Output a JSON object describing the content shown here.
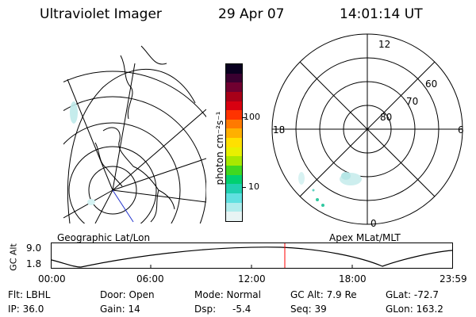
{
  "header": {
    "title": "Ultraviolet Imager",
    "date": "29 Apr 07",
    "time": "14:01:14 UT"
  },
  "left_map": {
    "caption": "Geographic Lat/Lon"
  },
  "right_map": {
    "caption": "Apex MLat/MLT",
    "mlt_labels": {
      "top": "12",
      "bottom": "0",
      "left": "18",
      "right": "6"
    },
    "lat_labels": [
      "60",
      "70",
      "80"
    ]
  },
  "colorbar": {
    "unit_label": "photon cm⁻²s⁻¹",
    "ticks": [
      "100",
      "10"
    ],
    "colors": [
      "#0a0020",
      "#3a0030",
      "#700030",
      "#a80018",
      "#d80010",
      "#ff3300",
      "#ff7a00",
      "#ffb000",
      "#ffe000",
      "#e8f000",
      "#a8e800",
      "#40d820",
      "#00d070",
      "#20d0b0",
      "#60e0e0",
      "#b0ecec",
      "#e8f4f4"
    ]
  },
  "altitude_plot": {
    "ylabel": "GC Alt",
    "yticks": [
      "9.0",
      "1.8"
    ],
    "xticks": [
      "00:00",
      "06:00",
      "12:00",
      "18:00",
      "23:59"
    ],
    "current_time_marker": "14:01",
    "marker_color": "#ff0000"
  },
  "info": {
    "flt": "Flt: LBHL",
    "ip": "IP: 36.0",
    "door": "Door: Open",
    "gain": "Gain: 14",
    "mode": "Mode: Normal",
    "dsp_label": "Dsp:",
    "dsp_value": "-5.4",
    "gc_alt": "GC Alt: 7.9 Re",
    "seq": "Seq: 39",
    "glat": "GLat: -72.7",
    "glon": "GLon: 163.2"
  }
}
